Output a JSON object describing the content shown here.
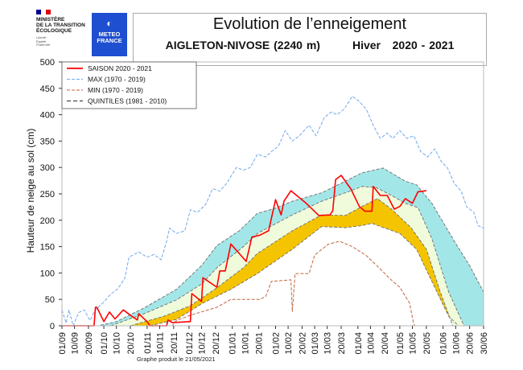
{
  "header": {
    "ministry_lines": [
      "MINISTÈRE",
      "DE LA TRANSITION",
      "ÉCOLOGIQUE"
    ],
    "motto_lines": [
      "Liberté",
      "Égalité",
      "Fraternité"
    ],
    "meteo_logo_lines": [
      "METEO",
      "FRANCE"
    ],
    "title": "Evolution de l’enneigement",
    "station": "AIGLETON-NIVOSE (2240 m)",
    "season": "Hiver   2020 - 2021"
  },
  "footer": "Graphe produit le 21/05/2021",
  "colors": {
    "saison": "#ff0000",
    "max": "#6fa8f0",
    "min": "#c2653e",
    "quintile_line": "#6e6e6e",
    "band_upper": "#a3e6e8",
    "band_middle": "#f0fbdc",
    "band_lower": "#f5c400"
  },
  "chart_data": {
    "type": "line",
    "title": "Evolution de l’enneigement",
    "xlabel": "",
    "ylabel": "Hauteur de neige au sol (cm)",
    "ylim": [
      0,
      500
    ],
    "yticks": [
      0,
      50,
      100,
      150,
      200,
      250,
      300,
      350,
      400,
      450,
      500
    ],
    "xlim": [
      "01/09",
      "30/06"
    ],
    "xticks": [
      "01/09",
      "10/09",
      "20/09",
      "01/10",
      "10/10",
      "20/10",
      "01/11",
      "10/11",
      "20/11",
      "01/12",
      "10/12",
      "20/12",
      "01/01",
      "10/01",
      "20/01",
      "01/02",
      "10/02",
      "20/02",
      "01/03",
      "10/03",
      "20/03",
      "01/04",
      "10/04",
      "20/04",
      "01/05",
      "10/05",
      "20/05",
      "01/06",
      "10/06",
      "20/06",
      "30/06"
    ],
    "grid": false,
    "legend_position": "top-left",
    "legend": [
      "SAISON 2020 - 2021",
      "MAX (1970 - 2019)",
      "MIN (1970 - 2019)",
      "QUINTILES (1981 - 2010)"
    ],
    "series": [
      {
        "name": "SAISON 2020 - 2021",
        "style": "solid",
        "points": [
          [
            "01/09",
            0
          ],
          [
            "24/09",
            0
          ],
          [
            "25/09",
            35
          ],
          [
            "26/09",
            35
          ],
          [
            "01/10",
            8
          ],
          [
            "05/10",
            26
          ],
          [
            "09/10",
            13
          ],
          [
            "15/10",
            30
          ],
          [
            "21/10",
            18
          ],
          [
            "25/10",
            11
          ],
          [
            "26/10",
            23
          ],
          [
            "01/11",
            8
          ],
          [
            "03/11",
            0
          ],
          [
            "15/11",
            0
          ],
          [
            "16/11",
            11
          ],
          [
            "19/11",
            6
          ],
          [
            "02/12",
            8
          ],
          [
            "03/12",
            61
          ],
          [
            "10/12",
            46
          ],
          [
            "11/12",
            91
          ],
          [
            "21/12",
            73
          ],
          [
            "23/12",
            104
          ],
          [
            "27/12",
            104
          ],
          [
            "31/12",
            155
          ],
          [
            "11/01",
            122
          ],
          [
            "15/01",
            168
          ],
          [
            "21/01",
            172
          ],
          [
            "27/01",
            180
          ],
          [
            "01/02",
            239
          ],
          [
            "05/02",
            210
          ],
          [
            "07/02",
            236
          ],
          [
            "12/02",
            256
          ],
          [
            "23/02",
            232
          ],
          [
            "04/03",
            209
          ],
          [
            "12/03",
            210
          ],
          [
            "14/03",
            218
          ],
          [
            "16/03",
            277
          ],
          [
            "20/03",
            285
          ],
          [
            "27/03",
            259
          ],
          [
            "02/04",
            226
          ],
          [
            "06/04",
            217
          ],
          [
            "11/04",
            217
          ],
          [
            "12/04",
            264
          ],
          [
            "17/04",
            247
          ],
          [
            "22/04",
            247
          ],
          [
            "27/04",
            221
          ],
          [
            "01/05",
            226
          ],
          [
            "05/05",
            241
          ],
          [
            "10/05",
            232
          ],
          [
            "14/05",
            254
          ],
          [
            "20/05",
            256
          ]
        ]
      },
      {
        "name": "MAX (1970 - 2019)",
        "style": "dashed",
        "points": [
          [
            "01/09",
            30
          ],
          [
            "04/09",
            5
          ],
          [
            "06/09",
            30
          ],
          [
            "09/09",
            0
          ],
          [
            "13/09",
            25
          ],
          [
            "17/09",
            30
          ],
          [
            "21/09",
            10
          ],
          [
            "25/09",
            30
          ],
          [
            "01/10",
            45
          ],
          [
            "06/10",
            60
          ],
          [
            "11/10",
            70
          ],
          [
            "16/10",
            90
          ],
          [
            "19/10",
            130
          ],
          [
            "26/10",
            140
          ],
          [
            "01/11",
            130
          ],
          [
            "06/11",
            135
          ],
          [
            "11/11",
            125
          ],
          [
            "15/11",
            160
          ],
          [
            "17/11",
            185
          ],
          [
            "22/11",
            175
          ],
          [
            "28/11",
            180
          ],
          [
            "02/12",
            220
          ],
          [
            "07/12",
            215
          ],
          [
            "13/12",
            230
          ],
          [
            "18/12",
            260
          ],
          [
            "23/12",
            255
          ],
          [
            "28/12",
            270
          ],
          [
            "04/01",
            300
          ],
          [
            "09/01",
            295
          ],
          [
            "14/01",
            300
          ],
          [
            "19/01",
            325
          ],
          [
            "25/01",
            320
          ],
          [
            "29/01",
            330
          ],
          [
            "03/02",
            340
          ],
          [
            "08/02",
            370
          ],
          [
            "13/02",
            350
          ],
          [
            "18/02",
            360
          ],
          [
            "25/02",
            380
          ],
          [
            "02/03",
            360
          ],
          [
            "08/03",
            395
          ],
          [
            "13/03",
            405
          ],
          [
            "17/03",
            400
          ],
          [
            "22/03",
            410
          ],
          [
            "28/03",
            435
          ],
          [
            "02/04",
            425
          ],
          [
            "07/04",
            410
          ],
          [
            "12/04",
            380
          ],
          [
            "17/04",
            355
          ],
          [
            "22/04",
            365
          ],
          [
            "26/04",
            355
          ],
          [
            "01/05",
            370
          ],
          [
            "06/05",
            355
          ],
          [
            "11/05",
            360
          ],
          [
            "16/05",
            330
          ],
          [
            "21/05",
            320
          ],
          [
            "26/05",
            335
          ],
          [
            "31/05",
            310
          ],
          [
            "04/06",
            300
          ],
          [
            "09/06",
            270
          ],
          [
            "14/06",
            255
          ],
          [
            "18/06",
            225
          ],
          [
            "23/06",
            215
          ],
          [
            "26/06",
            190
          ],
          [
            "30/06",
            185
          ]
        ]
      },
      {
        "name": "MIN (1970 - 2019)",
        "style": "dashed",
        "points": [
          [
            "01/10",
            0
          ],
          [
            "19/11",
            0
          ],
          [
            "22/11",
            10
          ],
          [
            "02/12",
            20
          ],
          [
            "21/12",
            35
          ],
          [
            "31/12",
            50
          ],
          [
            "21/01",
            50
          ],
          [
            "25/01",
            56
          ],
          [
            "29/01",
            84
          ],
          [
            "12/02",
            87
          ],
          [
            "13/02",
            27
          ],
          [
            "15/02",
            99
          ],
          [
            "25/02",
            99
          ],
          [
            "01/03",
            134
          ],
          [
            "11/03",
            155
          ],
          [
            "19/03",
            160
          ],
          [
            "28/03",
            150
          ],
          [
            "07/04",
            133
          ],
          [
            "16/04",
            110
          ],
          [
            "26/04",
            84
          ],
          [
            "01/05",
            73
          ],
          [
            "08/05",
            43
          ],
          [
            "11/05",
            3
          ],
          [
            "12/05",
            0
          ],
          [
            "30/06",
            0
          ]
        ]
      }
    ],
    "quintiles": {
      "q80": [
        [
          "01/09",
          0
        ],
        [
          "27/09",
          0
        ],
        [
          "10/10",
          8
        ],
        [
          "30/10",
          34
        ],
        [
          "22/11",
          69
        ],
        [
          "10/12",
          114
        ],
        [
          "21/12",
          152
        ],
        [
          "06/01",
          180
        ],
        [
          "19/01",
          213
        ],
        [
          "31/01",
          222
        ],
        [
          "13/02",
          236
        ],
        [
          "06/03",
          252
        ],
        [
          "23/03",
          274
        ],
        [
          "04/04",
          290
        ],
        [
          "19/04",
          299
        ],
        [
          "05/05",
          274
        ],
        [
          "13/05",
          267
        ],
        [
          "24/05",
          232
        ],
        [
          "08/06",
          165
        ],
        [
          "20/06",
          114
        ],
        [
          "30/06",
          64
        ]
      ],
      "q60": [
        [
          "06/10",
          0
        ],
        [
          "30/10",
          23
        ],
        [
          "22/11",
          49
        ],
        [
          "10/12",
          79
        ],
        [
          "21/12",
          110
        ],
        [
          "09/01",
          150
        ],
        [
          "19/01",
          175
        ],
        [
          "13/02",
          210
        ],
        [
          "06/03",
          236
        ],
        [
          "23/03",
          252
        ],
        [
          "04/04",
          264
        ],
        [
          "14/04",
          262
        ],
        [
          "25/04",
          247
        ],
        [
          "05/05",
          232
        ],
        [
          "14/05",
          224
        ],
        [
          "24/05",
          165
        ],
        [
          "05/06",
          64
        ],
        [
          "16/06",
          0
        ]
      ],
      "q40": [
        [
          "20/10",
          0
        ],
        [
          "13/11",
          18
        ],
        [
          "02/12",
          38
        ],
        [
          "21/12",
          72
        ],
        [
          "09/01",
          110
        ],
        [
          "19/01",
          137
        ],
        [
          "13/02",
          180
        ],
        [
          "06/03",
          210
        ],
        [
          "23/03",
          209
        ],
        [
          "04/04",
          226
        ],
        [
          "15/04",
          241
        ],
        [
          "25/04",
          221
        ],
        [
          "09/05",
          186
        ],
        [
          "20/05",
          145
        ],
        [
          "30/05",
          64
        ],
        [
          "08/06",
          0
        ]
      ],
      "q20": [
        [
          "03/11",
          0
        ],
        [
          "22/11",
          12
        ],
        [
          "11/12",
          43
        ],
        [
          "31/12",
          69
        ],
        [
          "19/01",
          99
        ],
        [
          "13/02",
          145
        ],
        [
          "06/03",
          188
        ],
        [
          "23/03",
          186
        ],
        [
          "04/04",
          190
        ],
        [
          "11/04",
          194
        ],
        [
          "01/05",
          175
        ],
        [
          "13/05",
          145
        ],
        [
          "24/05",
          84
        ],
        [
          "05/06",
          18
        ],
        [
          "12/06",
          0
        ]
      ]
    }
  }
}
